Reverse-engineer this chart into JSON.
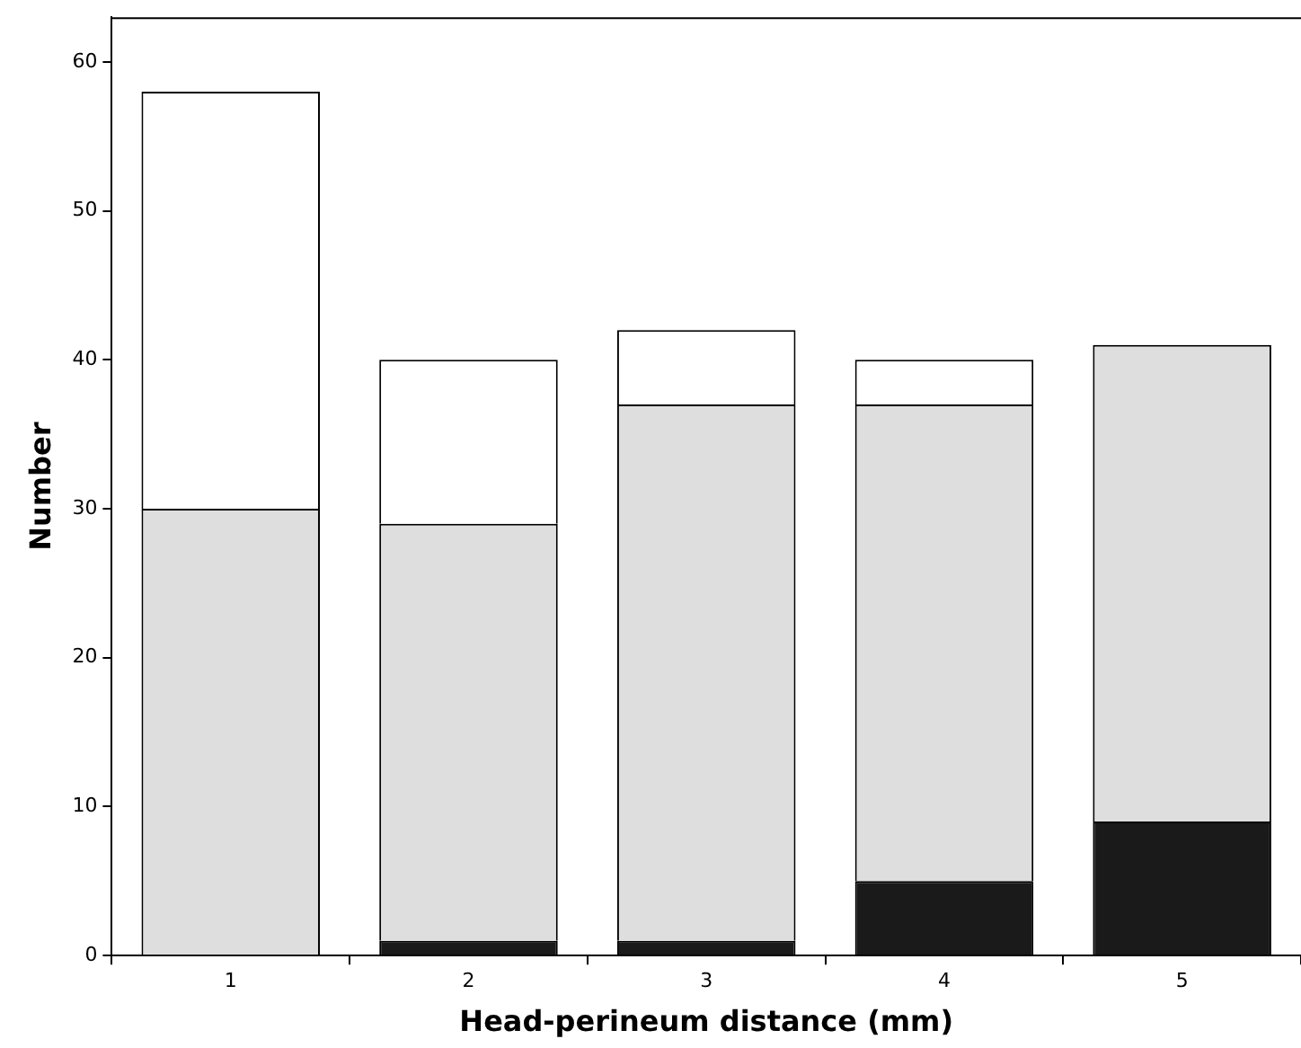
{
  "chart_data": {
    "type": "bar",
    "stacked": true,
    "xlabel": "Head-perineum distance (mm)",
    "ylabel": "Number",
    "categories": [
      "1",
      "2",
      "3",
      "4",
      "5"
    ],
    "series": [
      {
        "color": "#1a1a1a",
        "values": [
          0,
          1,
          1,
          5,
          9
        ]
      },
      {
        "color": "#dedede",
        "values": [
          30,
          28,
          36,
          32,
          32
        ]
      },
      {
        "color": "#ffffff",
        "values": [
          28,
          11,
          5,
          3,
          0
        ]
      }
    ],
    "ylim": [
      0,
      63
    ],
    "yticks": [
      0,
      10,
      20,
      30,
      40,
      50,
      60
    ],
    "grid": false,
    "legend": false
  }
}
